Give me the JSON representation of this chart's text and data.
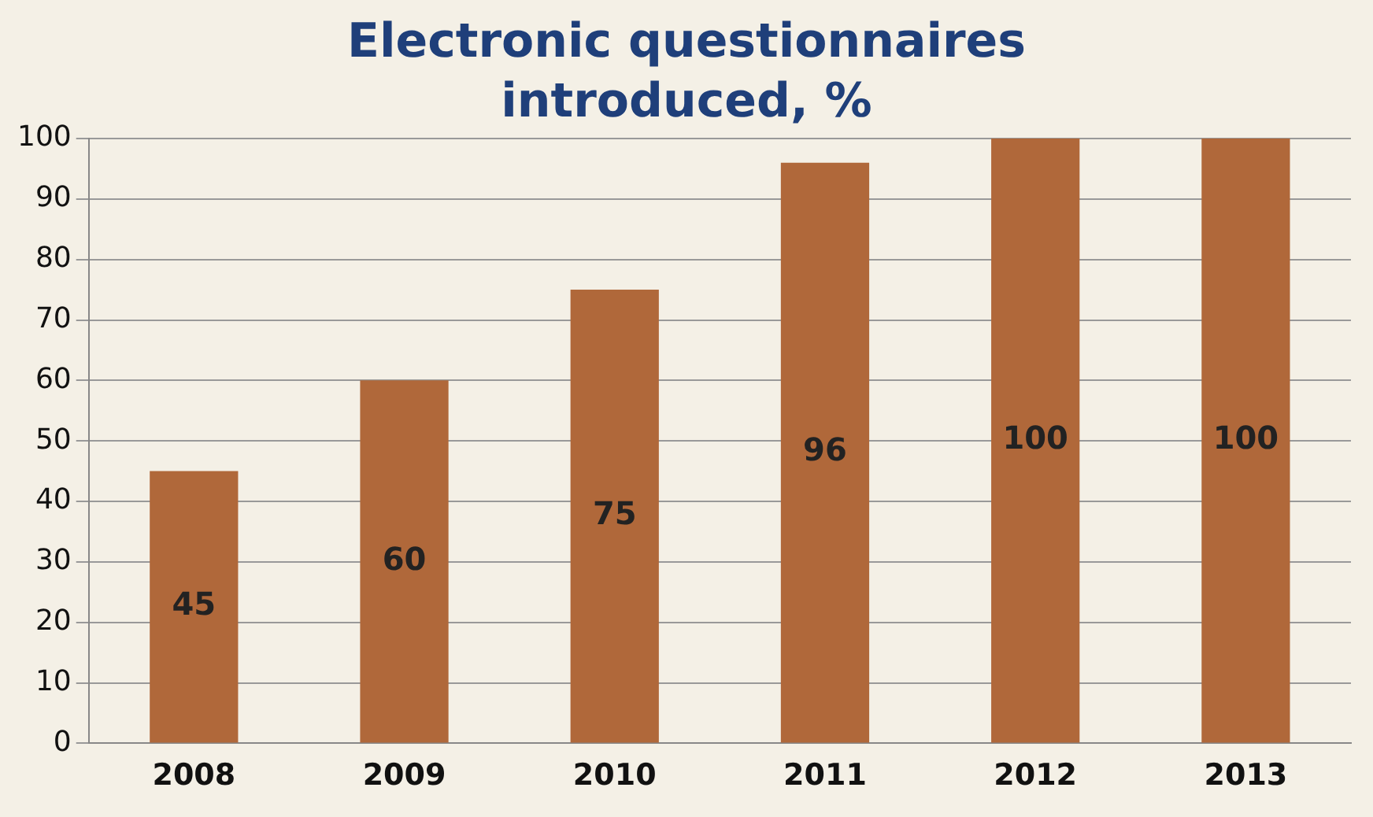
{
  "chart_data": {
    "type": "bar",
    "title": "Electronic questionnaires introduced, %",
    "categories": [
      "2008",
      "2009",
      "2010",
      "2011",
      "2012",
      "2013"
    ],
    "values": [
      45,
      60,
      75,
      96,
      100,
      100
    ],
    "color": "#b0683a",
    "ylim": [
      0,
      100
    ],
    "yticks": [
      0,
      10,
      20,
      30,
      40,
      50,
      60,
      70,
      80,
      90,
      100
    ],
    "grid": "y",
    "data_labels": true,
    "legend": false
  }
}
